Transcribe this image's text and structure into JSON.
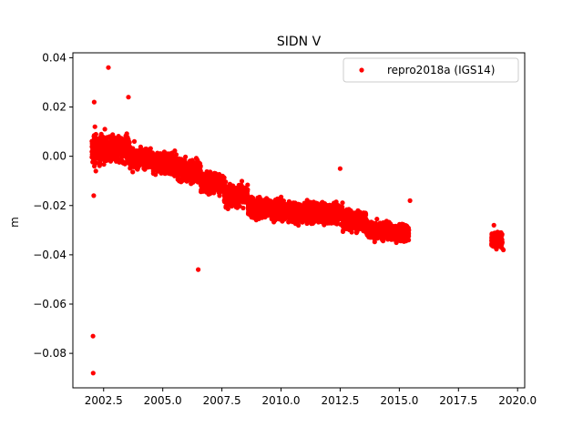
{
  "chart_data": {
    "type": "scatter",
    "title": "SIDN V",
    "xlabel": "",
    "ylabel": "m",
    "xlim": [
      2001.2,
      2020.3
    ],
    "ylim": [
      -0.094,
      0.042
    ],
    "x_ticks": [
      2002.5,
      2005.0,
      2007.5,
      2010.0,
      2012.5,
      2015.0,
      2017.5,
      2020.0
    ],
    "x_tick_labels": [
      "2002.5",
      "2005.0",
      "2007.5",
      "2010.0",
      "2012.5",
      "2015.0",
      "2017.5",
      "2020.0"
    ],
    "y_ticks": [
      0.04,
      0.02,
      0.0,
      -0.02,
      -0.04,
      -0.06,
      -0.08
    ],
    "y_tick_labels": [
      "0.04",
      "0.02",
      "0.00",
      "−0.02",
      "−0.04",
      "−0.06",
      "−0.08"
    ],
    "grid": false,
    "legend_position": "top-right",
    "series": [
      {
        "name": "repro2018a (IGS14)",
        "color": "#ff0000",
        "marker": "circle",
        "x": [
          2002.05,
          2002.07,
          2002.09,
          2002.11,
          2002.13,
          2002.15,
          2002.17,
          2002.2,
          2002.25,
          2002.3,
          2002.35,
          2002.4,
          2002.45,
          2002.5,
          2002.55,
          2002.6,
          2002.65,
          2002.7,
          2002.75,
          2002.8,
          2002.85,
          2002.9,
          2002.95,
          2003.0,
          2003.1,
          2003.2,
          2003.3,
          2003.4,
          2003.5,
          2003.6,
          2003.7,
          2003.8,
          2003.9,
          2004.0,
          2004.1,
          2004.2,
          2004.3,
          2004.4,
          2004.5,
          2004.6,
          2004.7,
          2004.8,
          2004.9,
          2005.0,
          2005.1,
          2005.2,
          2005.3,
          2005.4,
          2005.5,
          2005.6,
          2005.7,
          2005.8,
          2005.9,
          2006.0,
          2006.1,
          2006.2,
          2006.3,
          2006.4,
          2006.5,
          2006.6,
          2006.7,
          2006.8,
          2006.9,
          2007.0,
          2007.1,
          2007.2,
          2007.3,
          2007.4,
          2007.5,
          2007.6,
          2007.7,
          2007.8,
          2007.9,
          2008.0,
          2008.2,
          2008.4,
          2008.6,
          2008.8,
          2009.0,
          2009.2,
          2009.4,
          2009.6,
          2009.8,
          2010.0,
          2010.2,
          2010.4,
          2010.6,
          2010.8,
          2011.0,
          2011.2,
          2011.4,
          2011.6,
          2011.8,
          2012.0,
          2012.2,
          2012.4,
          2012.6,
          2012.8,
          2013.0,
          2013.2,
          2013.4,
          2013.6,
          2013.8,
          2014.0,
          2014.2,
          2014.4,
          2014.6,
          2014.8,
          2015.0,
          2015.2,
          2015.4,
          2019.0,
          2019.1,
          2019.2,
          2019.3,
          2019.4,
          2002.05,
          2002.06,
          2002.7,
          2003.55,
          2006.5,
          2012.5,
          2015.45,
          2002.1,
          2002.08
        ],
        "y": [
          0.005,
          -0.002,
          0.008,
          -0.004,
          0.012,
          0.003,
          -0.006,
          0.004,
          0.007,
          0.001,
          -0.003,
          0.009,
          0.002,
          0.006,
          0.011,
          -0.001,
          0.005,
          0.003,
          0.008,
          -0.002,
          0.004,
          0.006,
          0.001,
          0.003,
          0.0,
          0.005,
          -0.002,
          0.004,
          0.002,
          -0.003,
          0.001,
          0.006,
          -0.004,
          0.002,
          -0.001,
          -0.005,
          0.003,
          -0.003,
          0.0,
          -0.006,
          -0.002,
          0.001,
          -0.004,
          -0.003,
          -0.007,
          0.001,
          -0.005,
          -0.002,
          -0.008,
          -0.004,
          -0.001,
          -0.006,
          -0.009,
          -0.005,
          -0.003,
          -0.008,
          -0.006,
          -0.01,
          -0.007,
          -0.004,
          -0.009,
          -0.012,
          -0.008,
          -0.011,
          -0.014,
          -0.01,
          -0.013,
          -0.016,
          -0.012,
          -0.015,
          -0.018,
          -0.014,
          -0.017,
          -0.016,
          -0.019,
          -0.021,
          -0.018,
          -0.022,
          -0.02,
          -0.023,
          -0.021,
          -0.024,
          -0.022,
          -0.02,
          -0.025,
          -0.023,
          -0.021,
          -0.026,
          -0.024,
          -0.022,
          -0.025,
          -0.023,
          -0.027,
          -0.024,
          -0.022,
          -0.026,
          -0.023,
          -0.025,
          -0.028,
          -0.03,
          -0.027,
          -0.031,
          -0.029,
          -0.032,
          -0.03,
          -0.033,
          -0.031,
          -0.029,
          -0.034,
          -0.032,
          -0.03,
          -0.028,
          -0.033,
          -0.036,
          -0.031,
          -0.038,
          -0.073,
          -0.088,
          0.036,
          0.024,
          -0.046,
          -0.005,
          -0.018,
          0.022,
          -0.016
        ]
      }
    ],
    "clusters": [
      {
        "x_start": 2002.0,
        "x_end": 2002.6,
        "y_center": 0.003,
        "y_spread": 0.009,
        "count": 260
      },
      {
        "x_start": 2002.6,
        "x_end": 2003.6,
        "y_center": 0.003,
        "y_spread": 0.008,
        "count": 380
      },
      {
        "x_start": 2003.6,
        "x_end": 2004.6,
        "y_center": -0.001,
        "y_spread": 0.007,
        "count": 380
      },
      {
        "x_start": 2004.6,
        "x_end": 2005.6,
        "y_center": -0.003,
        "y_spread": 0.007,
        "count": 380
      },
      {
        "x_start": 2005.6,
        "x_end": 2006.6,
        "y_center": -0.006,
        "y_spread": 0.007,
        "count": 380
      },
      {
        "x_start": 2006.6,
        "x_end": 2007.6,
        "y_center": -0.011,
        "y_spread": 0.007,
        "count": 380
      },
      {
        "x_start": 2007.6,
        "x_end": 2008.6,
        "y_center": -0.016,
        "y_spread": 0.007,
        "count": 380
      },
      {
        "x_start": 2008.6,
        "x_end": 2009.6,
        "y_center": -0.021,
        "y_spread": 0.007,
        "count": 380
      },
      {
        "x_start": 2009.6,
        "x_end": 2010.6,
        "y_center": -0.022,
        "y_spread": 0.007,
        "count": 380
      },
      {
        "x_start": 2010.6,
        "x_end": 2011.6,
        "y_center": -0.023,
        "y_spread": 0.007,
        "count": 380
      },
      {
        "x_start": 2011.6,
        "x_end": 2012.6,
        "y_center": -0.023,
        "y_spread": 0.007,
        "count": 380
      },
      {
        "x_start": 2012.6,
        "x_end": 2013.6,
        "y_center": -0.026,
        "y_spread": 0.007,
        "count": 380
      },
      {
        "x_start": 2013.6,
        "x_end": 2014.6,
        "y_center": -0.03,
        "y_spread": 0.006,
        "count": 380
      },
      {
        "x_start": 2014.6,
        "x_end": 2015.4,
        "y_center": -0.031,
        "y_spread": 0.006,
        "count": 320
      },
      {
        "x_start": 2018.9,
        "x_end": 2019.35,
        "y_center": -0.034,
        "y_spread": 0.005,
        "count": 260
      }
    ]
  }
}
